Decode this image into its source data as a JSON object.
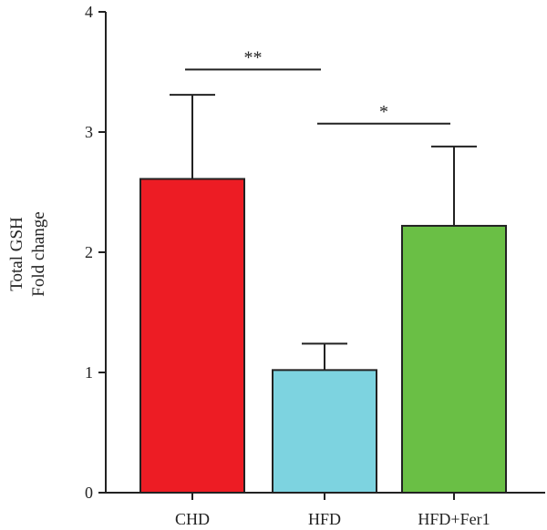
{
  "chart_data": {
    "type": "bar",
    "title": "",
    "xlabel": "",
    "ylabel_lines": [
      "Total GSH",
      "Fold change"
    ],
    "ylim": [
      0,
      4
    ],
    "yticks": [
      0,
      1,
      2,
      3,
      4
    ],
    "grid": false,
    "categories": [
      "CHD",
      "HFD",
      "HFD+Fer1"
    ],
    "values": [
      2.61,
      1.02,
      2.22
    ],
    "errors": [
      0.7,
      0.22,
      0.66
    ],
    "colors": [
      "#ed1c24",
      "#7dd3e0",
      "#6abf45"
    ],
    "significance": [
      {
        "from": 0,
        "to": 1,
        "label": "**",
        "y": 3.52
      },
      {
        "from": 1,
        "to": 2,
        "label": "*",
        "y": 3.07
      }
    ]
  }
}
